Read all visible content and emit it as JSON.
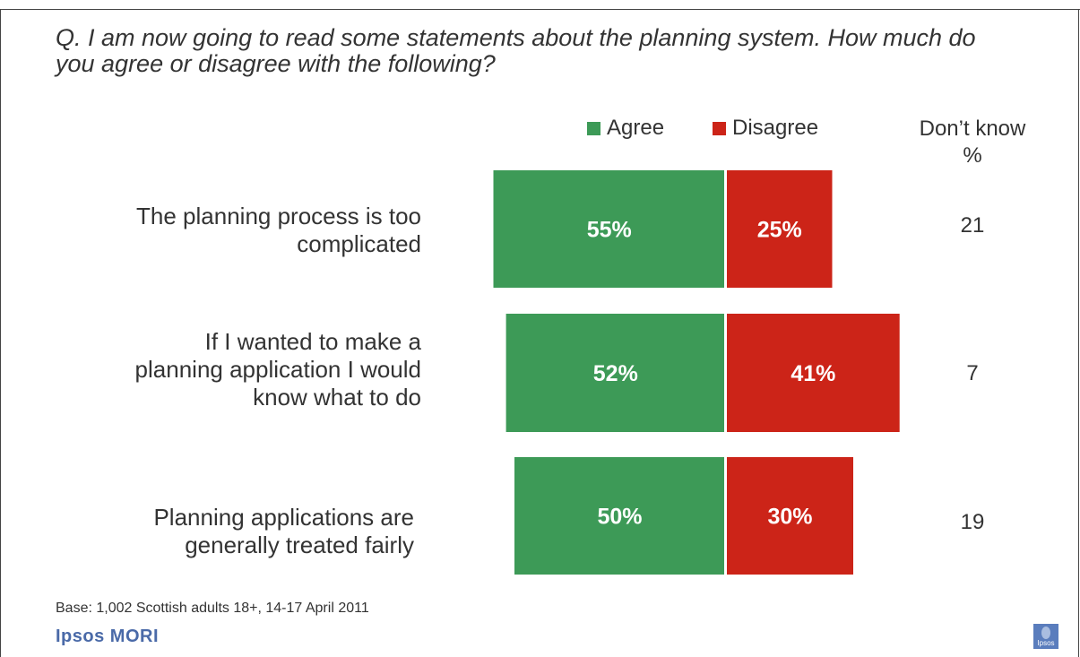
{
  "question": "Q. I am now going to read some statements about the planning system. How much do you agree or disagree with the following?",
  "legend": {
    "agree": "Agree",
    "disagree": "Disagree",
    "dont_know_line1": "Don’t know",
    "dont_know_line2": "%"
  },
  "rows": [
    {
      "label_lines": [
        "The planning process is too",
        "complicated"
      ]
    },
    {
      "label_lines": [
        "If I wanted to make a",
        "planning application I would",
        "know what to do"
      ]
    },
    {
      "label_lines": [
        "Planning applications are",
        "generally treated fairly"
      ]
    }
  ],
  "colors": {
    "agree": "#3d9a57",
    "disagree": "#cc2418"
  },
  "chart_data": {
    "type": "bar",
    "orientation": "horizontal-diverging",
    "categories": [
      "The planning process is too complicated",
      "If I wanted to make a planning application I would know what to do",
      "Planning applications are generally treated fairly"
    ],
    "series": [
      {
        "name": "Agree",
        "values": [
          55,
          52,
          50
        ],
        "labels": [
          "55%",
          "52%",
          "50%"
        ]
      },
      {
        "name": "Disagree",
        "values": [
          25,
          41,
          30
        ],
        "labels": [
          "25%",
          "41%",
          "30%"
        ]
      },
      {
        "name": "Don’t know",
        "values": [
          21,
          7,
          19
        ],
        "labels": [
          "21",
          "7",
          "19"
        ]
      }
    ],
    "legend_position": "top-right",
    "grid": false
  },
  "footer": {
    "base": "Base: 1,002 Scottish adults 18+, 14-17 April 2011",
    "brand": "Ipsos MORI",
    "logo_text": "Ipsos"
  }
}
